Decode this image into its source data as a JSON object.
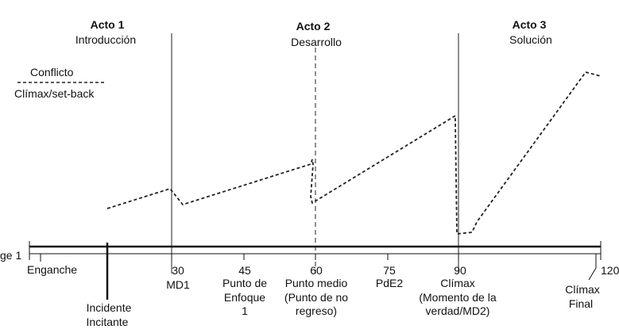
{
  "acts": [
    {
      "title": "Acto 1",
      "subtitle": "Introducción"
    },
    {
      "title": "Acto 2",
      "subtitle": "Desarrollo"
    },
    {
      "title": "Acto 3",
      "subtitle": "Solución"
    }
  ],
  "legend": {
    "conflict": "Conflicto",
    "climax": "Clímax/set-back"
  },
  "axis": {
    "page_label": "ge 1",
    "start_label": "Enganche",
    "end_tick": "120",
    "inciting_label": [
      "Incidente",
      "Incitante"
    ],
    "final_climax_label": [
      "Clímax",
      "Final"
    ]
  },
  "ticks": [
    {
      "value": "30",
      "label": [
        "MD1"
      ]
    },
    {
      "value": "45",
      "label": [
        "Punto de",
        "Enfoque",
        "1"
      ]
    },
    {
      "value": "60",
      "label": [
        "Punto medio",
        "(Punto de no",
        "regreso)"
      ]
    },
    {
      "value": "75",
      "label": [
        "PdE2"
      ]
    },
    {
      "value": "90",
      "label": [
        "Clímax",
        "(Momento de la",
        "verdad/MD2)"
      ]
    }
  ]
}
